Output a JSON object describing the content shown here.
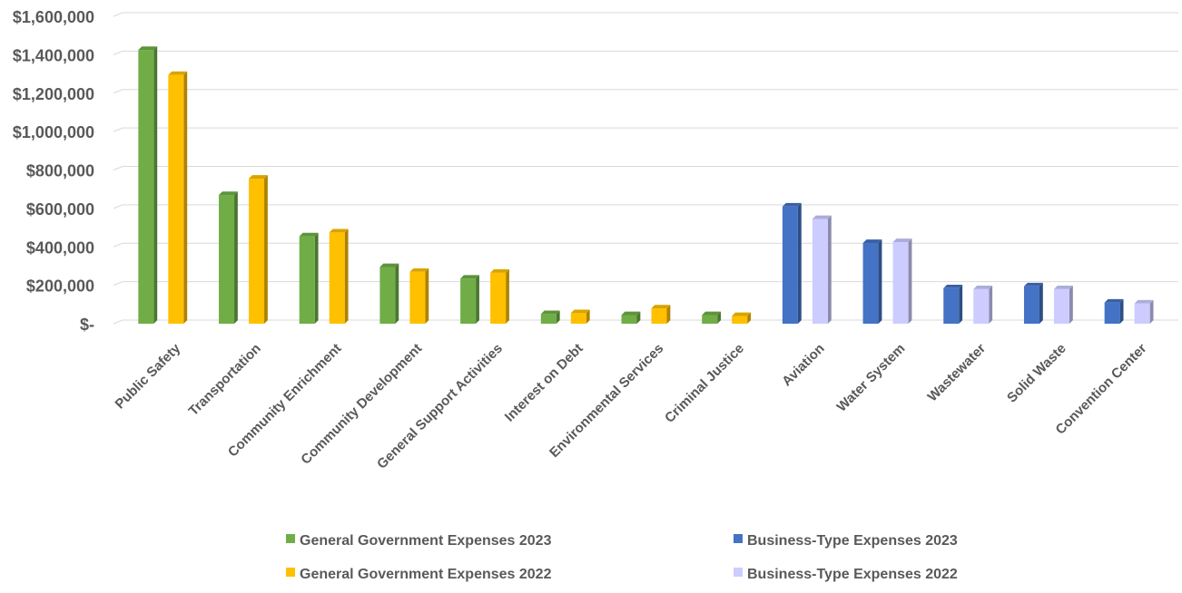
{
  "chart_data": {
    "type": "bar",
    "categories": [
      "Public Safety",
      "Transportation",
      "Community Enrichment",
      "Community Development",
      "General Support Activities",
      "Interest on Debt",
      "Environmental Services",
      "Criminal Justice",
      "Aviation",
      "Water System",
      "Wastewater",
      "Solid Waste",
      "Convention Center"
    ],
    "series": [
      {
        "name": "General Government Expenses 2023",
        "color": "#70ad47",
        "values": [
          1425000,
          670000,
          455000,
          295000,
          235000,
          50000,
          45000,
          45000,
          null,
          null,
          null,
          null,
          null
        ]
      },
      {
        "name": "General Government Expenses 2022",
        "color": "#ffc000",
        "values": [
          1295000,
          755000,
          475000,
          270000,
          265000,
          55000,
          80000,
          40000,
          null,
          null,
          null,
          null,
          null
        ]
      },
      {
        "name": "Business-Type Expenses 2023",
        "color": "#4472c4",
        "values": [
          null,
          null,
          null,
          null,
          null,
          null,
          null,
          null,
          610000,
          420000,
          185000,
          195000,
          110000
        ]
      },
      {
        "name": "Business-Type Expenses 2022",
        "color": "#ccccff",
        "values": [
          null,
          null,
          null,
          null,
          null,
          null,
          null,
          null,
          545000,
          425000,
          180000,
          180000,
          105000
        ]
      }
    ],
    "y_ticks": [
      "$-",
      "$200,000",
      "$400,000",
      "$600,000",
      "$800,000",
      "$1,000,000",
      "$1,200,000",
      "$1,400,000",
      "$1,600,000"
    ],
    "ylim": [
      0,
      1600000
    ],
    "grid": true,
    "legend": "bottom"
  }
}
